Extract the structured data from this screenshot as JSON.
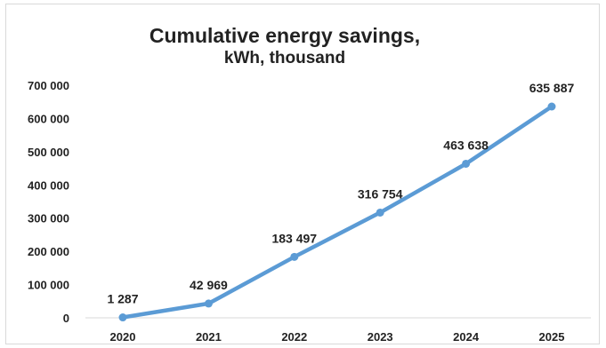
{
  "chart_data": {
    "type": "line",
    "title": "Cumulative energy savings,",
    "subtitle": "kWh, thousand",
    "categories": [
      "2020",
      "2021",
      "2022",
      "2023",
      "2024",
      "2025"
    ],
    "series": [
      {
        "values": [
          1287,
          42969,
          183497,
          316754,
          463638,
          635887
        ]
      }
    ],
    "data_labels": [
      "1 287",
      "42 969",
      "183 497",
      "316 754",
      "463 638",
      "635 887"
    ],
    "y_ticks": [
      0,
      100000,
      200000,
      300000,
      400000,
      500000,
      600000,
      700000
    ],
    "y_tick_labels": [
      "0",
      "100 000",
      "200 000",
      "300 000",
      "400 000",
      "500 000",
      "600 000",
      "700 000"
    ],
    "ylim": [
      0,
      700000
    ],
    "grid": false,
    "legend": "none",
    "colors": {
      "line": "#5b9bd5"
    }
  }
}
